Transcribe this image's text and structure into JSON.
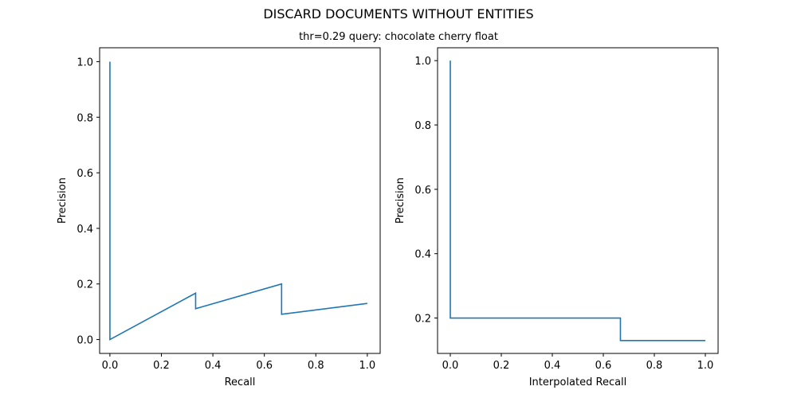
{
  "figure": {
    "title": "DISCARD DOCUMENTS WITHOUT ENTITIES",
    "subtitle": "thr=0.29    query: chocolate cherry float"
  },
  "colors": {
    "series": "#1f77b4",
    "axes": "#000000",
    "background": "#ffffff"
  },
  "chart_data": [
    {
      "type": "line",
      "title": "",
      "xlabel": "Recall",
      "ylabel": "Precision",
      "xlim": [
        -0.04,
        1.05
      ],
      "ylim": [
        -0.05,
        1.05
      ],
      "xticks": [
        0.0,
        0.2,
        0.4,
        0.6,
        0.8,
        1.0
      ],
      "xtick_labels": [
        "0.0",
        "0.2",
        "0.4",
        "0.6",
        "0.8",
        "1.0"
      ],
      "yticks": [
        0.0,
        0.2,
        0.4,
        0.6,
        0.8,
        1.0
      ],
      "ytick_labels": [
        "0.0",
        "0.2",
        "0.4",
        "0.6",
        "0.8",
        "1.0"
      ],
      "grid": false,
      "series": [
        {
          "x": [
            0.0,
            0.0,
            0.333,
            0.333,
            0.667,
            0.667,
            1.0
          ],
          "y": [
            1.0,
            0.0,
            0.167,
            0.111,
            0.2,
            0.091,
            0.13
          ]
        }
      ]
    },
    {
      "type": "line",
      "title": "",
      "xlabel": "Interpolated Recall",
      "ylabel": "Precision",
      "xlim": [
        -0.05,
        1.05
      ],
      "ylim": [
        0.09,
        1.04
      ],
      "xticks": [
        0.0,
        0.2,
        0.4,
        0.6,
        0.8,
        1.0
      ],
      "xtick_labels": [
        "0.0",
        "0.2",
        "0.4",
        "0.6",
        "0.8",
        "1.0"
      ],
      "yticks": [
        0.2,
        0.4,
        0.6,
        0.8,
        1.0
      ],
      "ytick_labels": [
        "0.2",
        "0.4",
        "0.6",
        "0.8",
        "1.0"
      ],
      "grid": false,
      "series": [
        {
          "x": [
            0.0,
            0.0,
            0.667,
            0.667,
            1.0
          ],
          "y": [
            1.0,
            0.2,
            0.2,
            0.13,
            0.13
          ]
        }
      ]
    }
  ]
}
